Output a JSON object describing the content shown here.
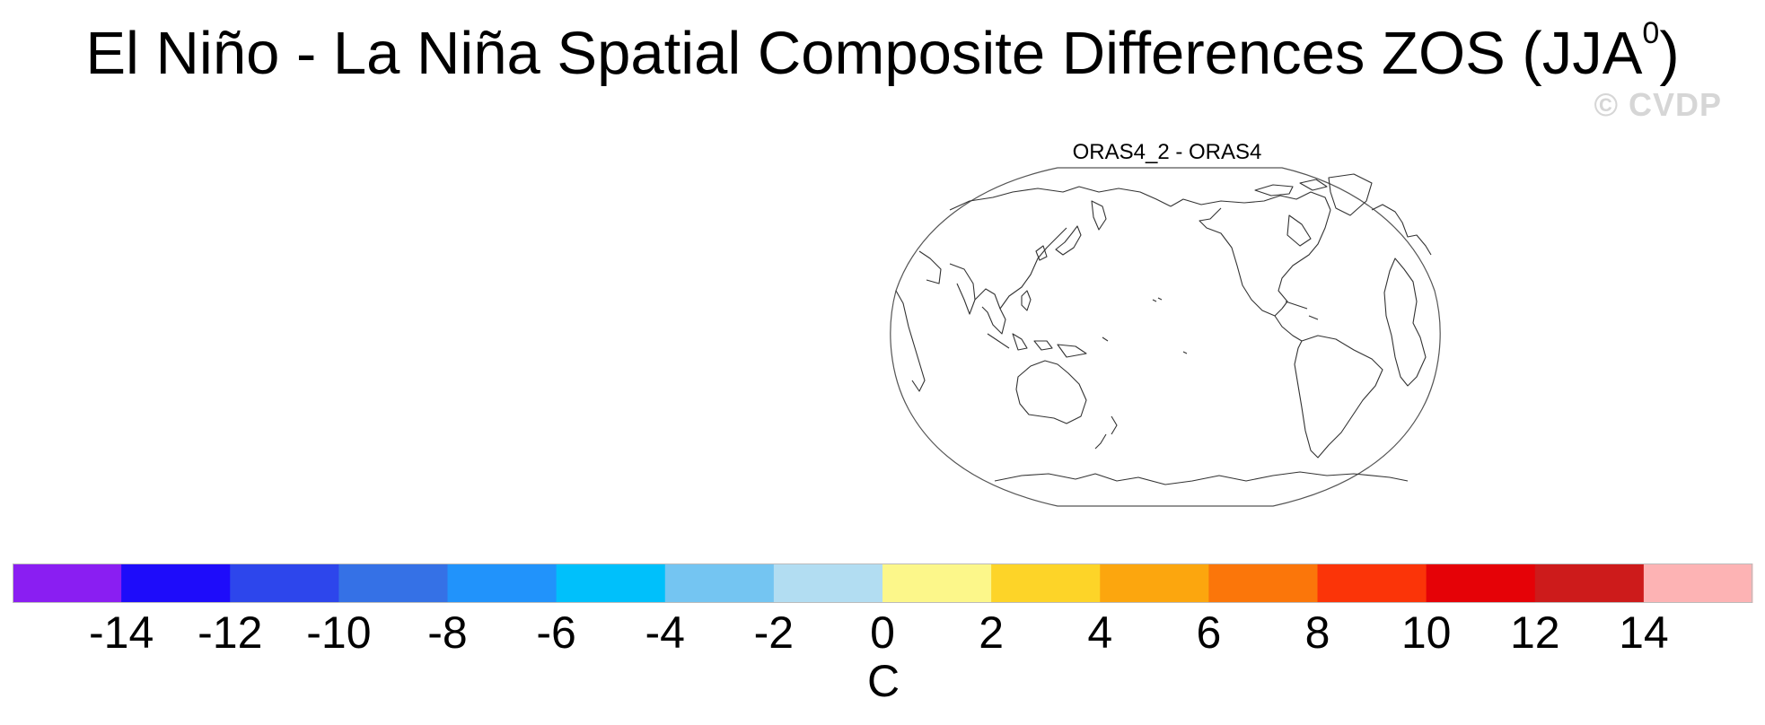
{
  "title": {
    "main": "El Niño - La Niña Spatial Composite Differences ZOS (JJA",
    "superscript": "0",
    "close": ")"
  },
  "watermark": "© CVDP",
  "panel": {
    "title": "ORAS4_2 - ORAS4",
    "projection": "robinson-pacific-centered",
    "fill": "none",
    "coastlines": true
  },
  "colorbar": {
    "units": "C",
    "tick_labels": [
      "-14",
      "-12",
      "-10",
      "-8",
      "-6",
      "-4",
      "-2",
      "0",
      "2",
      "4",
      "6",
      "8",
      "10",
      "12",
      "14"
    ],
    "colors": [
      "#8a1ef2",
      "#1e0cfa",
      "#2d46ec",
      "#3571e6",
      "#2193fb",
      "#00c0fb",
      "#74c5f2",
      "#b2ddf2",
      "#fcf78a",
      "#fdd428",
      "#fca60e",
      "#fb760a",
      "#fb3408",
      "#e50207",
      "#cd1b1b",
      "#fdb3b4"
    ]
  }
}
